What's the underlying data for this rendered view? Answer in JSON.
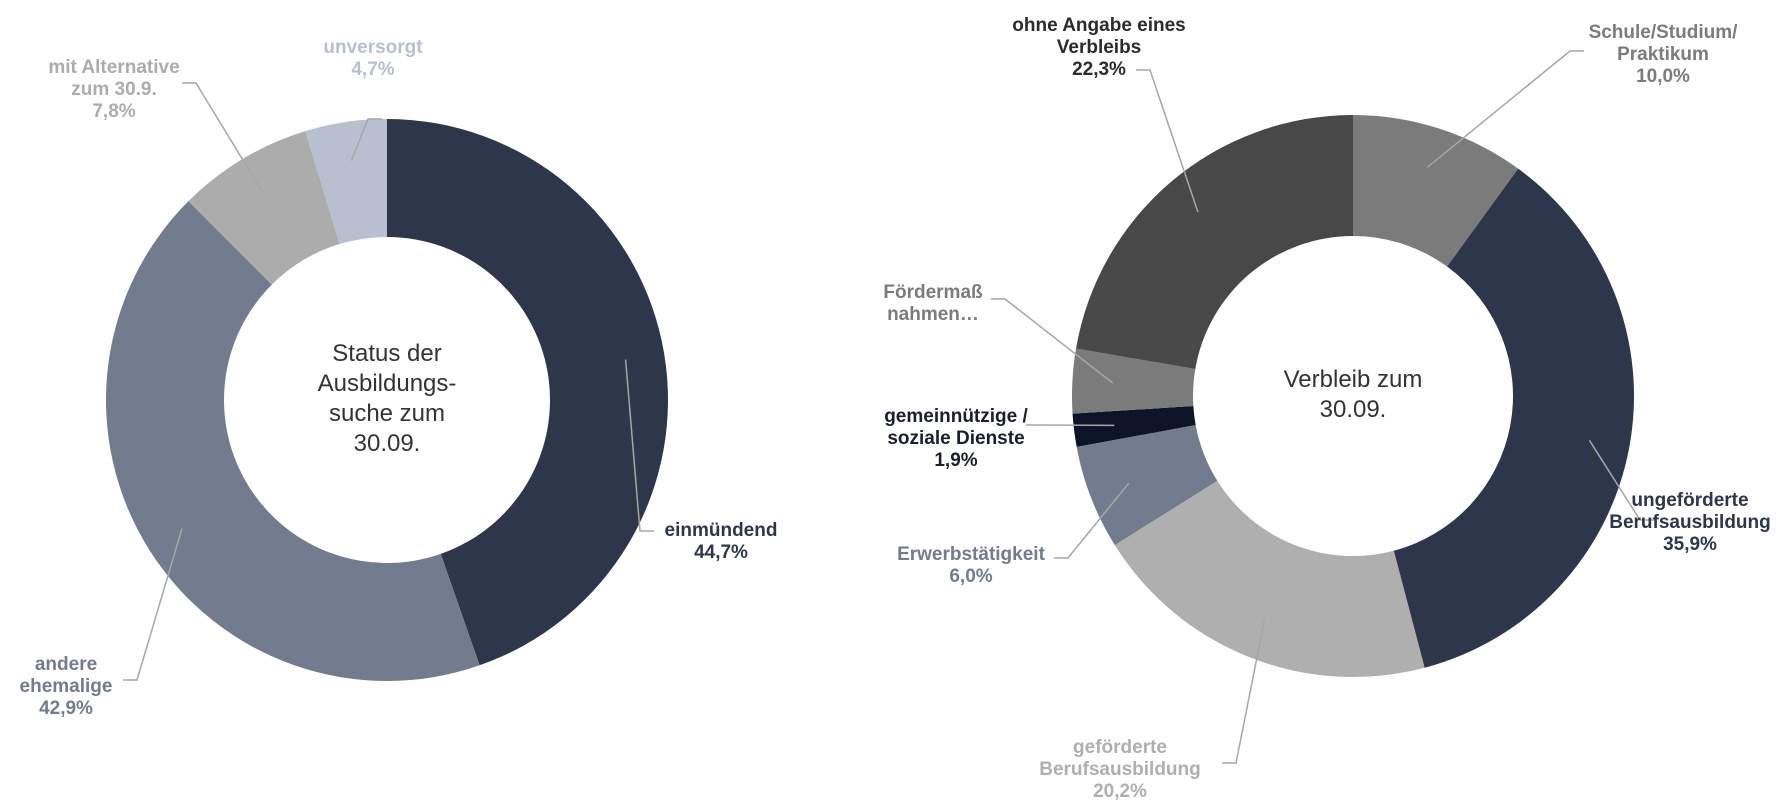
{
  "chart_data": [
    {
      "type": "donut",
      "center_text": "Status der\nAusbildungs-\nsuche zum\n30.09.",
      "categories": [
        "einmündend",
        "andere\nehemalige",
        "mit Alternative\nzum 30.9.",
        "unversorgt"
      ],
      "values": [
        44.7,
        42.9,
        7.8,
        4.7
      ],
      "value_labels": [
        "44,7%",
        "42,9%",
        "7,8%",
        "4,7%"
      ],
      "colors": [
        "#2e364b",
        "#737b8e",
        "#acacac",
        "#b8bfd1"
      ],
      "label_colors": [
        "#2e364b",
        "#737b8e",
        "#acacac",
        "#b8bfd1"
      ]
    },
    {
      "type": "donut",
      "center_text": "Verbleib zum\n30.09.",
      "categories": [
        "Schule/Studium/\nPraktikum",
        "ungeförderte\nBerufsausbildung",
        "geförderte\nBerufsausbildung",
        "Erwerbstätigkeit",
        "gemeinnützige /\nsoziale Dienste",
        "Fördermaß\nnahmen…",
        "ohne Angabe eines\nVerbleibs"
      ],
      "values": [
        10.0,
        35.9,
        20.2,
        6.0,
        1.9,
        3.7,
        22.3
      ],
      "value_labels": [
        "10,0%",
        "35,9%",
        "20,2%",
        "6,0%",
        "1,9%",
        null,
        "22,3%"
      ],
      "colors": [
        "#7b7b7b",
        "#2e364b",
        "#afafaf",
        "#737b8e",
        "#0d1428",
        "#7b7b7b",
        "#484848"
      ],
      "label_colors": [
        "#7b7b7b",
        "#2e364b",
        "#afafaf",
        "#737b8e",
        "#1a1f2e",
        "#7b7b7b",
        "#2b2b2b"
      ]
    }
  ]
}
